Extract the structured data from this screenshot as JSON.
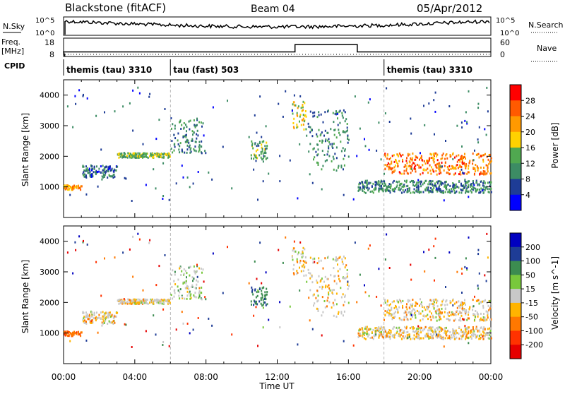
{
  "header": {
    "station": "Blackstone (fitACF)",
    "beam": "Beam 04",
    "date": "05/Apr/2012"
  },
  "noise_panel": {
    "left_label": "N.Sky",
    "left_ticks": [
      "10^5",
      "10^0"
    ],
    "right_ticks": [
      "10^5",
      "10^0"
    ],
    "right_label": "N.Search"
  },
  "freq_panel": {
    "left_label_1": "Freq.",
    "left_label_2": "[MHz]",
    "left_ticks": [
      "18",
      "8"
    ],
    "right_ticks": [
      "60",
      "0"
    ],
    "right_label": "Nave"
  },
  "cpid": {
    "label": "CPID",
    "segments": [
      {
        "name": "themis (tau) 3310",
        "start_h": 0,
        "end_h": 6
      },
      {
        "name": "tau (fast) 503",
        "start_h": 6,
        "end_h": 18
      },
      {
        "name": "themis (tau) 3310",
        "start_h": 18,
        "end_h": 24
      }
    ]
  },
  "power_panel": {
    "ylabel": "Slant Range [km]",
    "yticks": [
      "4000",
      "3000",
      "2000",
      "1000"
    ],
    "colorbar_label": "Power [dB]",
    "colorbar_ticks": [
      "28",
      "24",
      "20",
      "16",
      "12",
      "8",
      "4"
    ],
    "colors": [
      "#ff0000",
      "#ff5a00",
      "#ff9900",
      "#ffd200",
      "#50a850",
      "#3c8c64",
      "#1e3c96",
      "#0000ff"
    ]
  },
  "velocity_panel": {
    "ylabel": "Slant Range [km]",
    "yticks": [
      "4000",
      "3000",
      "2000",
      "1000"
    ],
    "colorbar_label": "Velocity [m s^-1]",
    "colorbar_ticks": [
      "200",
      "100",
      "50",
      "15",
      "-15",
      "-50",
      "-100",
      "-200"
    ],
    "colors": [
      "#0000c0",
      "#1e3c96",
      "#3c8c50",
      "#78c83c",
      "#c8c8c8",
      "#ffb400",
      "#ff7800",
      "#ff3200",
      "#e60000"
    ]
  },
  "x_axis": {
    "ticks": [
      "00:00",
      "04:00",
      "08:00",
      "12:00",
      "16:00",
      "20:00",
      "00:00"
    ],
    "label": "Time UT"
  },
  "chart_data": {
    "type": "heatmap",
    "x_range_hours": [
      0,
      24
    ],
    "y_range_km": [
      0,
      4500
    ],
    "frequency_series": [
      {
        "start_h": 0,
        "end_h": 13,
        "freq_mhz": 10.5
      },
      {
        "start_h": 13,
        "end_h": 16.5,
        "freq_mhz": 14.5
      },
      {
        "start_h": 16.5,
        "end_h": 24,
        "freq_mhz": 10.5
      }
    ],
    "echo_bands": [
      {
        "t0": 0,
        "t1": 1.0,
        "r0": 900,
        "r1": 1050,
        "power_db": 22,
        "velocity": -60
      },
      {
        "t0": 1.0,
        "t1": 3.0,
        "r0": 1300,
        "r1": 1700,
        "power_db": 8,
        "velocity": -10
      },
      {
        "t0": 3.0,
        "t1": 6.0,
        "r0": 1950,
        "r1": 2100,
        "power_db": 14,
        "velocity": -10
      },
      {
        "t0": 6.0,
        "t1": 7.8,
        "r0": 2100,
        "r1": 3200,
        "power_db": 10,
        "velocity": 10
      },
      {
        "t0": 10.5,
        "t1": 11.4,
        "r0": 1900,
        "r1": 2500,
        "power_db": 12,
        "velocity": 60
      },
      {
        "t0": 12.8,
        "t1": 13.6,
        "r0": 2800,
        "r1": 3800,
        "power_db": 18,
        "velocity": -10
      },
      {
        "t0": 13.6,
        "t1": 16.0,
        "r0": 1500,
        "r1": 3500,
        "power_db": 10,
        "velocity": -10
      },
      {
        "t0": 16.5,
        "t1": 24.0,
        "r0": 800,
        "r1": 1200,
        "power_db": 10,
        "velocity": -10
      },
      {
        "t0": 18.0,
        "t1": 24.0,
        "r0": 1400,
        "r1": 2100,
        "power_db": 24,
        "velocity": -10
      }
    ]
  }
}
